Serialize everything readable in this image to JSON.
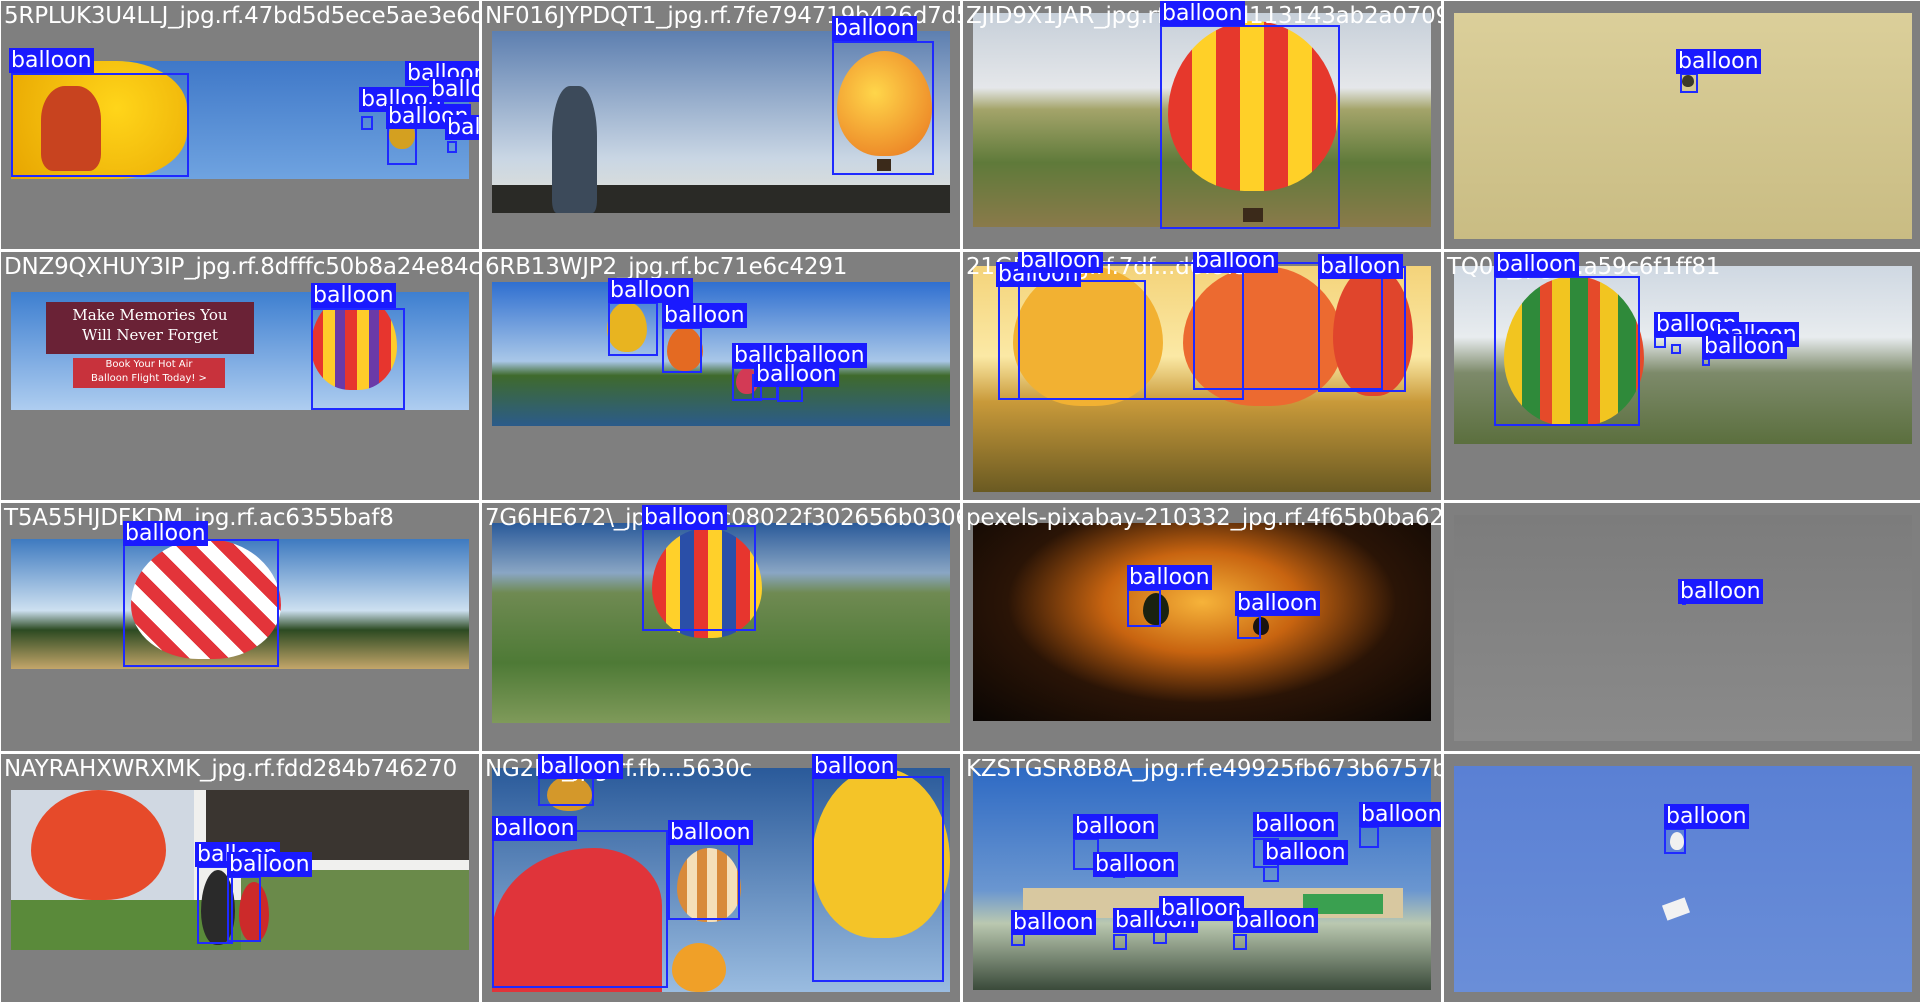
{
  "label_text": "balloon",
  "colors": {
    "box": "#1f2aff",
    "label_bg": "#1a1aff",
    "tile_bg": "#7f7f7f"
  },
  "tiles": [
    {
      "filename": "5RPLUK3U4LLJ_jpg.rf.47bd5d5ece5ae3e6d1f"
    },
    {
      "filename": "NF016JYPDQT1_jpg.rf.7fe794719b426d7d5e3c0"
    },
    {
      "filename": "ZJID9X1JAR_jpg.rf.f7aabd113143ab2a0709"
    },
    {
      "filename": ""
    },
    {
      "filename": "DNZ9QXHUY3IP_jpg.rf.8dfffc50b8a24e84c51"
    },
    {
      "filename": "6RB13WJP2_jpg.rf.bc71e6c4291"
    },
    {
      "filename": "21G5R_jpg.rf.7df...d6f9f5"
    },
    {
      "filename": "TQ01_jpg.rf.a59c6f1ff81"
    },
    {
      "filename": "T5A55HJDFKDM_jpg.rf.ac6355baf8"
    },
    {
      "filename": "7G6HE672\\_jpg.rf.45c08022f302656b0306"
    },
    {
      "filename": "pexels-pixabay-210332_jpg.rf.4f65b0ba625fe4.jpg"
    },
    {
      "filename": ""
    },
    {
      "filename": "NAYRAHXWRXMK_jpg.rf.fdd284b746270"
    },
    {
      "filename": "NG2P8_jpg.rf.fb...5630c"
    },
    {
      "filename": "KZSTGSR8B8A_jpg.rf.e49925fb673b6757b589"
    },
    {
      "filename": ""
    }
  ],
  "overlay": {
    "line1": "Make Memories You",
    "line2": "Will Never Forget",
    "cta1": "Book Your Hot Air",
    "cta2": "Balloon Flight Today! >"
  }
}
